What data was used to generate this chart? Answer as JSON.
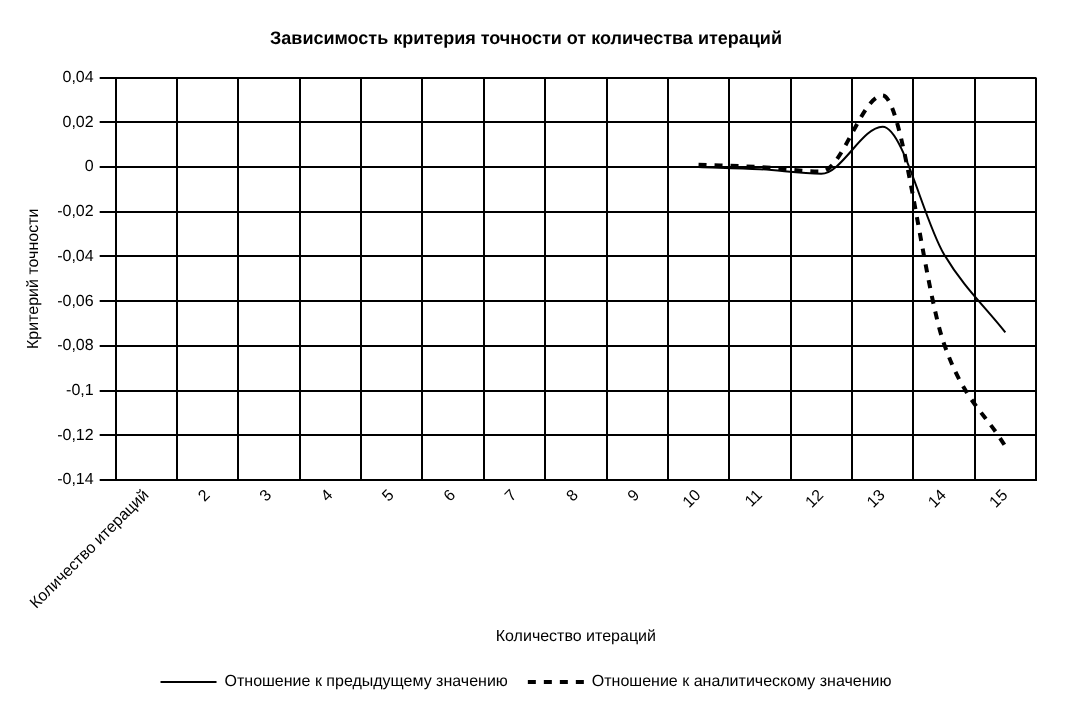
{
  "chart_data": {
    "type": "line",
    "title": "Зависимость критерия точности от количества итераций",
    "xlabel": "Количество итераций",
    "ylabel": "Критерий точности",
    "categories": [
      "Количество итераций",
      "2",
      "3",
      "4",
      "5",
      "6",
      "7",
      "8",
      "9",
      "10",
      "11",
      "12",
      "13",
      "14",
      "15"
    ],
    "series": [
      {
        "name": "Отношение к предыдущему значению",
        "color": "#000000",
        "line_style": "solid",
        "values": [
          null,
          null,
          null,
          null,
          null,
          null,
          null,
          null,
          null,
          0,
          -0.001,
          -0.003,
          0.018,
          -0.039,
          -0.074
        ]
      },
      {
        "name": "Отношение к аналитическому значению",
        "color": "#000000",
        "line_style": "dashed",
        "values": [
          null,
          null,
          null,
          null,
          null,
          null,
          null,
          null,
          null,
          0.001,
          0,
          -0.002,
          0.032,
          -0.079,
          -0.125
        ]
      }
    ],
    "ylim": [
      -0.14,
      0.04
    ],
    "yticks": [
      {
        "value": 0.04,
        "label": "0,04"
      },
      {
        "value": 0.02,
        "label": "0,02"
      },
      0,
      {
        "value": -0.02,
        "label": "-0,02"
      },
      {
        "value": -0.04,
        "label": "-0,04"
      },
      {
        "value": -0.06,
        "label": "-0,06"
      },
      {
        "value": -0.08,
        "label": "-0,08"
      },
      {
        "value": -0.1,
        "label": "-0,1"
      },
      {
        "value": -0.12,
        "label": "-0,12"
      },
      {
        "value": -0.14,
        "label": "-0,14"
      }
    ],
    "grid": true,
    "legend": "bottom",
    "marker": "none"
  }
}
